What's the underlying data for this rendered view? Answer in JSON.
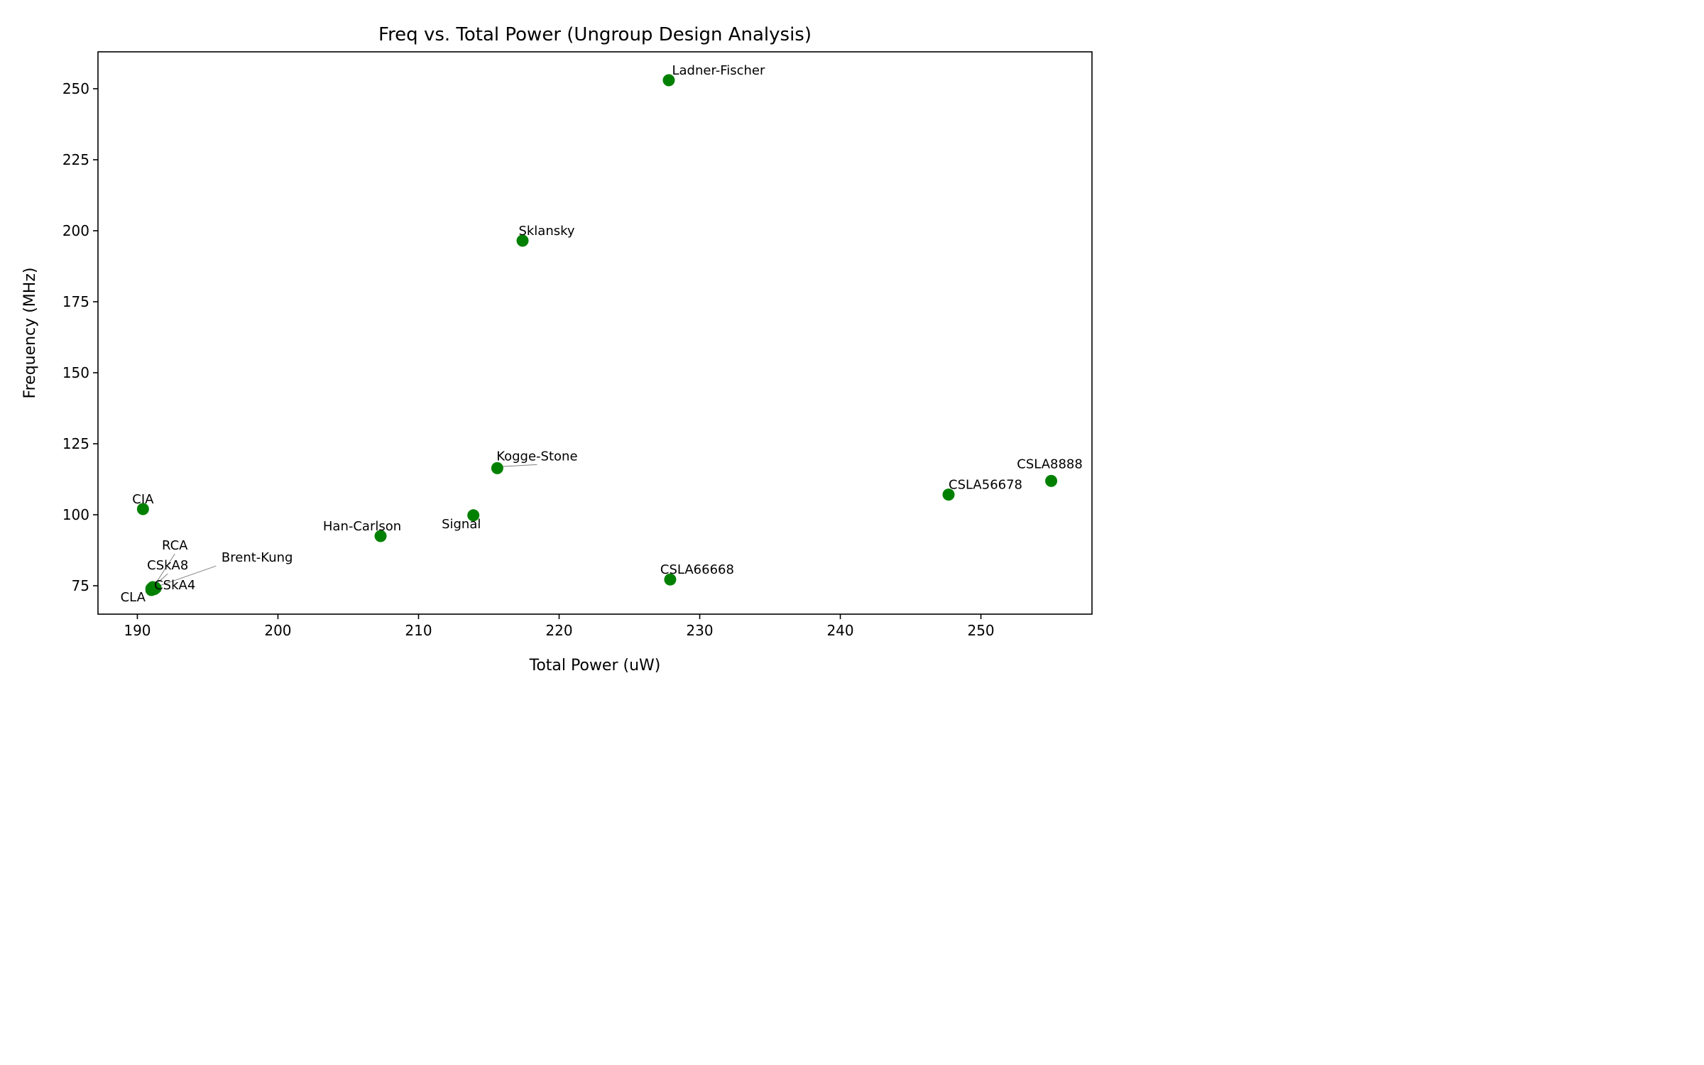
{
  "chart_data": {
    "type": "scatter",
    "title": "Freq vs. Total Power (Ungroup Design Analysis)",
    "xlabel": "Total Power (uW)",
    "ylabel": "Frequency (MHz)",
    "xlim": [
      187.2,
      257.9
    ],
    "ylim": [
      65,
      263
    ],
    "xticks": [
      190,
      200,
      210,
      220,
      230,
      240,
      250
    ],
    "yticks": [
      75,
      100,
      125,
      150,
      175,
      200,
      225,
      250
    ],
    "grid": false,
    "marker_color": "#008000",
    "points": [
      {
        "label": "Ladner-Fischer",
        "x": 227.8,
        "y": 253.0
      },
      {
        "label": "Sklansky",
        "x": 217.4,
        "y": 196.5
      },
      {
        "label": "Kogge-Stone",
        "x": 215.6,
        "y": 116.4
      },
      {
        "label": "Signal",
        "x": 213.9,
        "y": 99.8
      },
      {
        "label": "Han-Carlson",
        "x": 207.3,
        "y": 92.5
      },
      {
        "label": "CIA",
        "x": 190.4,
        "y": 102.0
      },
      {
        "label": "RCA",
        "x": 191.1,
        "y": 74.5
      },
      {
        "label": "CSkA8",
        "x": 191.0,
        "y": 74.0
      },
      {
        "label": "CSkA4",
        "x": 191.2,
        "y": 73.8
      },
      {
        "label": "CLA",
        "x": 191.0,
        "y": 73.5
      },
      {
        "label": "Brent-Kung",
        "x": 191.3,
        "y": 74.2
      },
      {
        "label": "CSLA66668",
        "x": 227.9,
        "y": 77.2
      },
      {
        "label": "CSLA56678",
        "x": 247.7,
        "y": 107.1
      },
      {
        "label": "CSLA8888",
        "x": 255.0,
        "y": 111.9
      }
    ]
  }
}
